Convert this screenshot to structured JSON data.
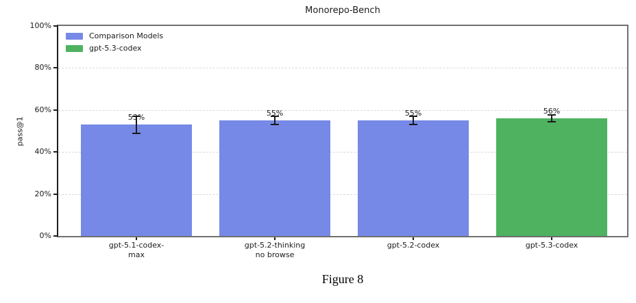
{
  "figure": {
    "caption": "Figure 8"
  },
  "colors": {
    "comparison_blue": "#7689e7",
    "highlight_green": "#4eb261",
    "errorbar_black": "#1a1a1a",
    "grid_gray": "#d9d9d9"
  },
  "chart_data": {
    "type": "bar",
    "title": "Monorepo-Bench",
    "xlabel": "",
    "ylabel": "pass@1",
    "ylim": [
      0,
      100
    ],
    "grid": "horizontal dashed, on",
    "legend_position": "upper left, no frame",
    "ytick_values": [
      0,
      20,
      40,
      60,
      80,
      100
    ],
    "ytick_labels": [
      "0%",
      "20%",
      "40%",
      "60%",
      "80%",
      "100%"
    ],
    "categories": [
      "gpt-5.1-codex-\nmax",
      "gpt-5.2-thinking\nno browse",
      "gpt-5.2-codex",
      "gpt-5.3-codex"
    ],
    "series": [
      {
        "name": "pass@1",
        "values": [
          53,
          55,
          55,
          56
        ]
      }
    ],
    "value_labels": [
      "53%",
      "55%",
      "55%",
      "56%"
    ],
    "error_bars": [
      4,
      2,
      2,
      1.5
    ],
    "bar_colors": [
      "#7689e7",
      "#7689e7",
      "#7689e7",
      "#4eb261"
    ],
    "legend": [
      {
        "label": "Comparison Models",
        "color": "#7689e7"
      },
      {
        "label": "gpt-5.3-codex",
        "color": "#4eb261"
      }
    ]
  }
}
